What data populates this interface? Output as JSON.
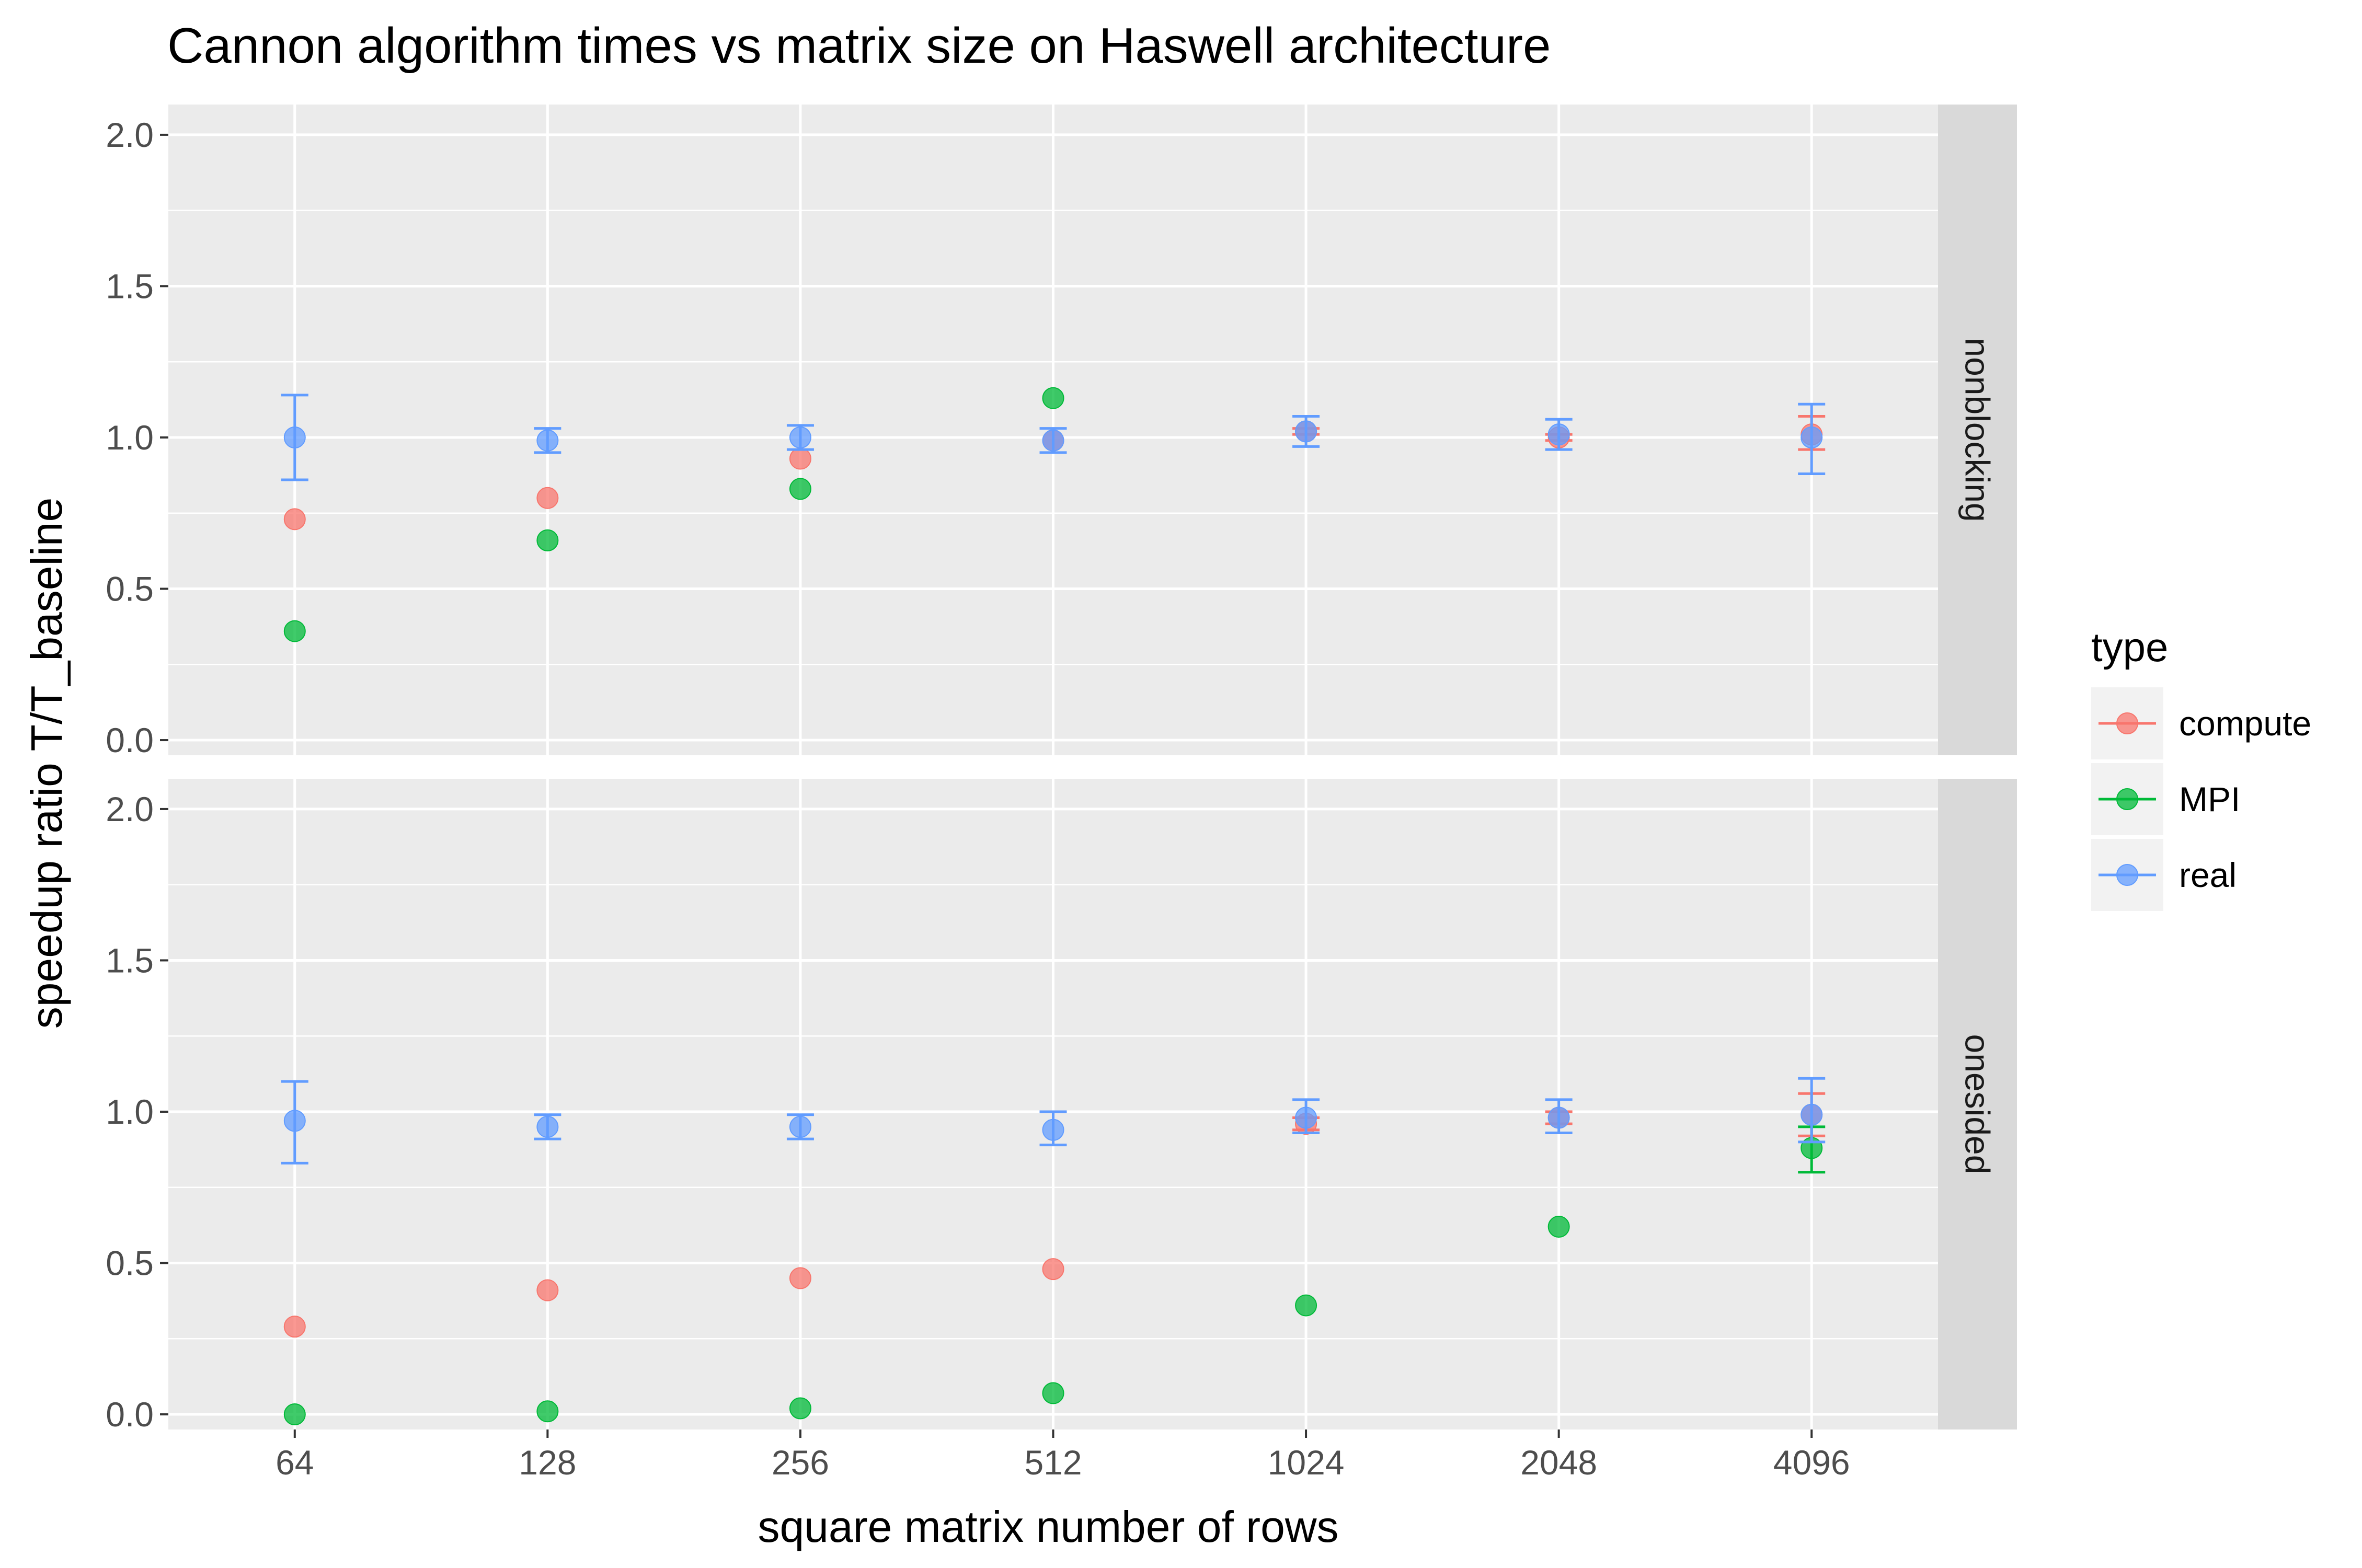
{
  "chart_data": {
    "type": "scatter",
    "title": "Cannon algorithm times vs matrix size on Haswell architecture",
    "xlabel": "square matrix number of rows",
    "ylabel": "speedup ratio T/T_baseline",
    "categories": [
      "64",
      "128",
      "256",
      "512",
      "1024",
      "2048",
      "4096"
    ],
    "ylim": [
      -0.05,
      2.1
    ],
    "yticks": [
      "0.0",
      "0.5",
      "1.0",
      "1.5",
      "2.0"
    ],
    "grid": true,
    "legend": {
      "title": "type",
      "position": "right",
      "entries": [
        {
          "name": "compute",
          "color": "#F8766D"
        },
        {
          "name": "MPI",
          "color": "#00BA38"
        },
        {
          "name": "real",
          "color": "#619CFF"
        }
      ]
    },
    "panels": [
      {
        "label": "nonblocking",
        "series": [
          {
            "name": "compute",
            "color": "#F8766D",
            "values": [
              0.73,
              0.8,
              0.93,
              0.99,
              1.02,
              1.0,
              1.01
            ],
            "err_low": [
              0.73,
              0.8,
              0.93,
              0.99,
              1.01,
              0.99,
              0.96
            ],
            "err_high": [
              0.73,
              0.8,
              0.93,
              0.99,
              1.03,
              1.01,
              1.07
            ]
          },
          {
            "name": "MPI",
            "color": "#00BA38",
            "values": [
              0.36,
              0.66,
              0.83,
              1.13,
              null,
              null,
              null
            ],
            "err_low": [
              0.36,
              0.66,
              0.83,
              1.13,
              null,
              null,
              null
            ],
            "err_high": [
              0.36,
              0.66,
              0.83,
              1.13,
              null,
              null,
              null
            ]
          },
          {
            "name": "real",
            "color": "#619CFF",
            "values": [
              1.0,
              0.99,
              1.0,
              0.99,
              1.02,
              1.01,
              1.0
            ],
            "err_low": [
              0.86,
              0.95,
              0.96,
              0.95,
              0.97,
              0.96,
              0.88
            ],
            "err_high": [
              1.14,
              1.03,
              1.04,
              1.03,
              1.07,
              1.06,
              1.11
            ]
          }
        ]
      },
      {
        "label": "onesided",
        "series": [
          {
            "name": "compute",
            "color": "#F8766D",
            "values": [
              0.29,
              0.41,
              0.45,
              0.48,
              0.96,
              0.98,
              0.99
            ],
            "err_low": [
              0.29,
              0.41,
              0.45,
              0.48,
              0.94,
              0.96,
              0.92
            ],
            "err_high": [
              0.29,
              0.41,
              0.45,
              0.48,
              0.98,
              1.0,
              1.06
            ]
          },
          {
            "name": "MPI",
            "color": "#00BA38",
            "values": [
              0.0,
              0.01,
              0.02,
              0.07,
              0.36,
              0.62,
              0.88
            ],
            "err_low": [
              0.0,
              0.01,
              0.02,
              0.07,
              0.36,
              0.62,
              0.8
            ],
            "err_high": [
              0.0,
              0.01,
              0.02,
              0.07,
              0.36,
              0.62,
              0.95
            ]
          },
          {
            "name": "real",
            "color": "#619CFF",
            "values": [
              0.97,
              0.95,
              0.95,
              0.94,
              0.98,
              0.98,
              0.99
            ],
            "err_low": [
              0.83,
              0.91,
              0.91,
              0.89,
              0.93,
              0.93,
              0.9
            ],
            "err_high": [
              1.1,
              0.99,
              0.99,
              1.0,
              1.04,
              1.04,
              1.11
            ]
          }
        ]
      }
    ]
  }
}
